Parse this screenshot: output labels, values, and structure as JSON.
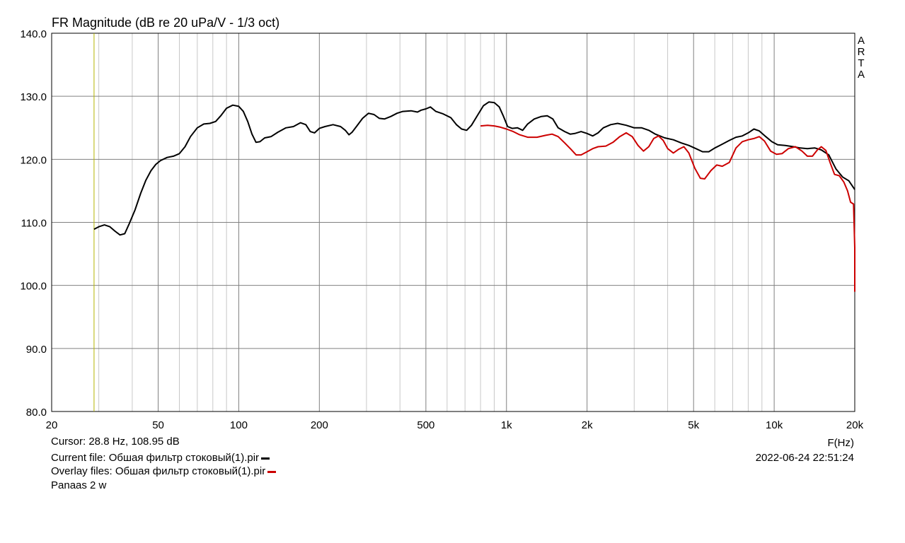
{
  "chart_data": {
    "type": "line",
    "title": "FR Magnitude (dB re 20 uPa/V - 1/3 oct)",
    "watermark": [
      "A",
      "R",
      "T",
      "A"
    ],
    "xlabel": "F(Hz)",
    "x_scale": "log",
    "xlim": [
      20,
      20000
    ],
    "ylim": [
      80,
      140
    ],
    "grid": true,
    "x_ticks": [
      {
        "value": 20,
        "label": "20"
      },
      {
        "value": 50,
        "label": "50"
      },
      {
        "value": 100,
        "label": "100"
      },
      {
        "value": 200,
        "label": "200"
      },
      {
        "value": 500,
        "label": "500"
      },
      {
        "value": 1000,
        "label": "1k"
      },
      {
        "value": 2000,
        "label": "2k"
      },
      {
        "value": 5000,
        "label": "5k"
      },
      {
        "value": 10000,
        "label": "10k"
      },
      {
        "value": 20000,
        "label": "20k"
      }
    ],
    "y_ticks": [
      {
        "value": 80,
        "label": "80.0"
      },
      {
        "value": 90,
        "label": "90.0"
      },
      {
        "value": 100,
        "label": "100.0"
      },
      {
        "value": 110,
        "label": "110.0"
      },
      {
        "value": 120,
        "label": "120.0"
      },
      {
        "value": 130,
        "label": "130.0"
      },
      {
        "value": 140,
        "label": "140.0"
      }
    ],
    "cursor_hz": 28.8,
    "series": [
      {
        "color": "#000000",
        "points": [
          [
            28.8,
            108.9
          ],
          [
            30,
            109.3
          ],
          [
            31.5,
            109.6
          ],
          [
            33,
            109.3
          ],
          [
            34.5,
            108.6
          ],
          [
            36,
            108.0
          ],
          [
            37.5,
            108.2
          ],
          [
            39,
            109.8
          ],
          [
            41,
            112.0
          ],
          [
            43,
            114.6
          ],
          [
            45,
            116.7
          ],
          [
            47,
            118.2
          ],
          [
            49,
            119.2
          ],
          [
            51,
            119.8
          ],
          [
            54,
            120.3
          ],
          [
            57,
            120.5
          ],
          [
            60,
            120.9
          ],
          [
            63,
            122.0
          ],
          [
            66,
            123.6
          ],
          [
            70,
            125.0
          ],
          [
            74,
            125.6
          ],
          [
            78,
            125.7
          ],
          [
            82,
            126.0
          ],
          [
            86,
            127.0
          ],
          [
            90,
            128.1
          ],
          [
            95,
            128.6
          ],
          [
            100,
            128.4
          ],
          [
            104,
            127.6
          ],
          [
            108,
            126.0
          ],
          [
            112,
            124.0
          ],
          [
            116,
            122.7
          ],
          [
            120,
            122.8
          ],
          [
            125,
            123.4
          ],
          [
            132,
            123.6
          ],
          [
            140,
            124.3
          ],
          [
            150,
            125.0
          ],
          [
            160,
            125.2
          ],
          [
            170,
            125.8
          ],
          [
            178,
            125.5
          ],
          [
            185,
            124.4
          ],
          [
            192,
            124.2
          ],
          [
            200,
            124.9
          ],
          [
            210,
            125.2
          ],
          [
            225,
            125.5
          ],
          [
            240,
            125.2
          ],
          [
            250,
            124.6
          ],
          [
            258,
            123.9
          ],
          [
            265,
            124.3
          ],
          [
            275,
            125.2
          ],
          [
            290,
            126.5
          ],
          [
            305,
            127.3
          ],
          [
            320,
            127.1
          ],
          [
            335,
            126.5
          ],
          [
            350,
            126.4
          ],
          [
            370,
            126.8
          ],
          [
            390,
            127.3
          ],
          [
            410,
            127.6
          ],
          [
            440,
            127.7
          ],
          [
            465,
            127.5
          ],
          [
            480,
            127.8
          ],
          [
            500,
            128.0
          ],
          [
            520,
            128.3
          ],
          [
            545,
            127.6
          ],
          [
            580,
            127.2
          ],
          [
            620,
            126.6
          ],
          [
            650,
            125.5
          ],
          [
            680,
            124.8
          ],
          [
            710,
            124.6
          ],
          [
            740,
            125.4
          ],
          [
            780,
            127.0
          ],
          [
            820,
            128.5
          ],
          [
            860,
            129.1
          ],
          [
            900,
            129.0
          ],
          [
            940,
            128.3
          ],
          [
            975,
            126.8
          ],
          [
            1010,
            125.2
          ],
          [
            1050,
            124.9
          ],
          [
            1100,
            125.0
          ],
          [
            1150,
            124.6
          ],
          [
            1200,
            125.6
          ],
          [
            1270,
            126.4
          ],
          [
            1350,
            126.8
          ],
          [
            1420,
            126.9
          ],
          [
            1490,
            126.4
          ],
          [
            1560,
            125.0
          ],
          [
            1650,
            124.4
          ],
          [
            1730,
            124.0
          ],
          [
            1800,
            124.1
          ],
          [
            1900,
            124.4
          ],
          [
            2000,
            124.1
          ],
          [
            2100,
            123.7
          ],
          [
            2200,
            124.2
          ],
          [
            2300,
            125.0
          ],
          [
            2450,
            125.5
          ],
          [
            2600,
            125.7
          ],
          [
            2800,
            125.4
          ],
          [
            3000,
            125.0
          ],
          [
            3200,
            125.0
          ],
          [
            3400,
            124.6
          ],
          [
            3600,
            124.0
          ],
          [
            3900,
            123.4
          ],
          [
            4200,
            123.1
          ],
          [
            4500,
            122.6
          ],
          [
            4800,
            122.2
          ],
          [
            5100,
            121.7
          ],
          [
            5400,
            121.2
          ],
          [
            5700,
            121.2
          ],
          [
            6000,
            121.8
          ],
          [
            6400,
            122.4
          ],
          [
            6800,
            123.0
          ],
          [
            7200,
            123.5
          ],
          [
            7600,
            123.7
          ],
          [
            8000,
            124.2
          ],
          [
            8400,
            124.8
          ],
          [
            8800,
            124.5
          ],
          [
            9300,
            123.6
          ],
          [
            9800,
            122.8
          ],
          [
            10300,
            122.3
          ],
          [
            11000,
            122.2
          ],
          [
            11800,
            122.0
          ],
          [
            12500,
            121.8
          ],
          [
            13300,
            121.7
          ],
          [
            14200,
            121.8
          ],
          [
            15000,
            121.5
          ],
          [
            16000,
            120.7
          ],
          [
            17000,
            118.5
          ],
          [
            18000,
            117.2
          ],
          [
            19000,
            116.6
          ],
          [
            20000,
            115.2
          ]
        ]
      },
      {
        "color": "#cc0000",
        "points": [
          [
            800,
            125.3
          ],
          [
            850,
            125.4
          ],
          [
            900,
            125.3
          ],
          [
            950,
            125.1
          ],
          [
            1000,
            124.8
          ],
          [
            1060,
            124.4
          ],
          [
            1120,
            123.9
          ],
          [
            1200,
            123.5
          ],
          [
            1300,
            123.5
          ],
          [
            1400,
            123.8
          ],
          [
            1480,
            124.0
          ],
          [
            1560,
            123.6
          ],
          [
            1650,
            122.6
          ],
          [
            1740,
            121.6
          ],
          [
            1820,
            120.7
          ],
          [
            1900,
            120.7
          ],
          [
            2000,
            121.2
          ],
          [
            2100,
            121.7
          ],
          [
            2200,
            122.0
          ],
          [
            2350,
            122.1
          ],
          [
            2500,
            122.7
          ],
          [
            2650,
            123.6
          ],
          [
            2800,
            124.2
          ],
          [
            2950,
            123.6
          ],
          [
            3100,
            122.2
          ],
          [
            3250,
            121.3
          ],
          [
            3400,
            122.0
          ],
          [
            3550,
            123.3
          ],
          [
            3700,
            123.7
          ],
          [
            3850,
            123.0
          ],
          [
            4000,
            121.7
          ],
          [
            4200,
            121.0
          ],
          [
            4400,
            121.6
          ],
          [
            4600,
            122.0
          ],
          [
            4800,
            121.0
          ],
          [
            5050,
            118.6
          ],
          [
            5300,
            117.0
          ],
          [
            5500,
            116.9
          ],
          [
            5800,
            118.2
          ],
          [
            6100,
            119.1
          ],
          [
            6400,
            118.9
          ],
          [
            6800,
            119.5
          ],
          [
            7200,
            121.8
          ],
          [
            7600,
            122.8
          ],
          [
            8000,
            123.1
          ],
          [
            8400,
            123.3
          ],
          [
            8800,
            123.6
          ],
          [
            9200,
            122.9
          ],
          [
            9700,
            121.3
          ],
          [
            10200,
            120.8
          ],
          [
            10700,
            120.9
          ],
          [
            11300,
            121.7
          ],
          [
            12000,
            122.0
          ],
          [
            12700,
            121.3
          ],
          [
            13300,
            120.5
          ],
          [
            13900,
            120.5
          ],
          [
            14500,
            121.5
          ],
          [
            15000,
            122.0
          ],
          [
            15600,
            121.4
          ],
          [
            16200,
            119.4
          ],
          [
            16800,
            117.6
          ],
          [
            17500,
            117.4
          ],
          [
            18200,
            116.4
          ],
          [
            18800,
            115.0
          ],
          [
            19300,
            113.2
          ],
          [
            19800,
            112.9
          ],
          [
            20000,
            106.0
          ],
          [
            20000,
            99.0
          ]
        ]
      }
    ]
  },
  "footer": {
    "cursor": "Cursor: 28.8 Hz, 108.95 dB",
    "current_file": "Current file: Обшая фильтр стоковый(1).pir",
    "overlay_files": "Overlay files: Обшая фильтр стоковый(1).pir",
    "note": "Panaas 2 w",
    "axis_unit": "F(Hz)",
    "timestamp": "2022-06-24   22:51:24",
    "current_color": "#000000",
    "overlay_color": "#cc0000"
  }
}
